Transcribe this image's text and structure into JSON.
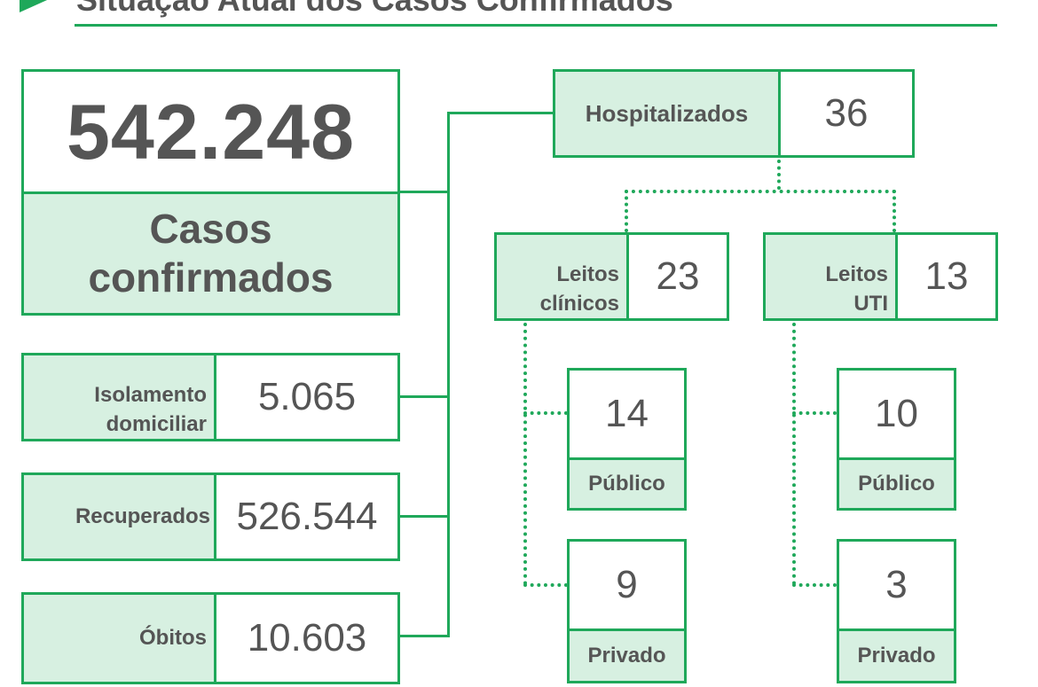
{
  "header": {
    "title": "Situação Atual dos Casos Confirmados"
  },
  "colors": {
    "accent": "#1fa85a",
    "label_fill": "#d7f0e1",
    "text": "#555555"
  },
  "confirmed": {
    "value": "542.248",
    "label_line1": "Casos",
    "label_line2": "confirmados"
  },
  "outcomes": [
    {
      "label_line1": "Isolamento",
      "label_line2": "domiciliar",
      "value": "5.065"
    },
    {
      "label_line1": "Recuperados",
      "label_line2": "",
      "value": "526.544"
    },
    {
      "label_line1": "Óbitos",
      "label_line2": "",
      "value": "10.603"
    }
  ],
  "hospitalized": {
    "label": "Hospitalizados",
    "value": "36"
  },
  "beds": {
    "clinical": {
      "label_line1": "Leitos",
      "label_line2": "clínicos",
      "value": "23",
      "public": {
        "value": "14",
        "label": "Público"
      },
      "private": {
        "value": "9",
        "label": "Privado"
      }
    },
    "icu": {
      "label_line1": "Leitos",
      "label_line2": "UTI",
      "value": "13",
      "public": {
        "value": "10",
        "label": "Público"
      },
      "private": {
        "value": "3",
        "label": "Privado"
      }
    }
  }
}
